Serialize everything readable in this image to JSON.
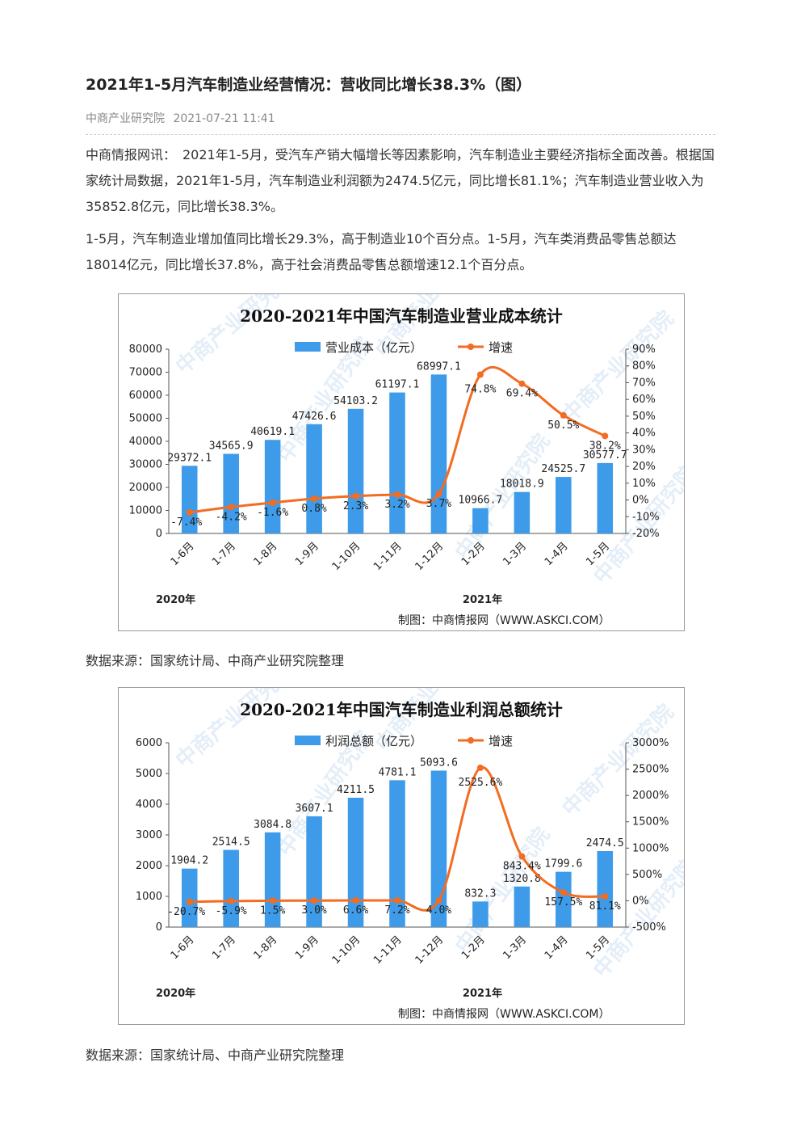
{
  "article": {
    "title": "2021年1-5月汽车制造业经营情况：营收同比增长38.3%（图）",
    "source": "中商产业研究院",
    "datetime": "2021-07-21 11:41",
    "para1": "中商情报网讯：　2021年1-5月，受汽车产销大幅增长等因素影响，汽车制造业主要经济指标全面改善。根据国家统计局数据，2021年1-5月，汽车制造业利润额为2474.5亿元，同比增长81.1%；汽车制造业营业收入为35852.8亿元，同比增长38.3%。",
    "para2": "1-5月，汽车制造业增加值同比增长29.3%，高于制造业10个百分点。1-5月，汽车类消费品零售总额达18014亿元，同比增长37.8%，高于社会消费品零售总额增速12.1个百分点。",
    "caption1": "数据来源：国家统计局、中商产业研究院整理",
    "caption2": "数据来源：国家统计局、中商产业研究院整理"
  },
  "colors": {
    "bar": "#3d9be9",
    "line": "#f26c21"
  },
  "chart_data": [
    {
      "type": "bar",
      "title": "2020-2021年中国汽车制造业营业成本统计",
      "categories": [
        "1-6月",
        "1-7月",
        "1-8月",
        "1-9月",
        "1-10月",
        "1-11月",
        "1-12月",
        "1-2月",
        "1-3月",
        "1-4月",
        "1-5月"
      ],
      "year_labels": [
        "2020年",
        "2021年"
      ],
      "series": [
        {
          "name": "营业成本（亿元）",
          "type": "bar",
          "axis": "left",
          "values": [
            29372.1,
            34565.9,
            40619.1,
            47426.6,
            54103.2,
            61197.1,
            68997.1,
            10966.7,
            18018.9,
            24525.7,
            30577.7
          ],
          "labels": [
            "29372.1",
            "34565.9",
            "40619.1",
            "47426.6",
            "54103.2",
            "61197.1",
            "68997.1",
            "10966.7",
            "18018.9",
            "24525.7",
            "30577.7"
          ]
        },
        {
          "name": "增速",
          "type": "line",
          "axis": "right",
          "values": [
            -7.4,
            -4.2,
            -1.6,
            0.8,
            2.3,
            3.2,
            3.7,
            74.8,
            69.4,
            50.5,
            38.2
          ],
          "labels": [
            "-7.4%",
            "-4.2%",
            "-1.6%",
            "0.8%",
            "2.3%",
            "3.2%",
            "3.7%",
            "74.8%",
            "69.4%",
            "50.5%",
            "38.2%"
          ]
        }
      ],
      "ylim_left": [
        0,
        80000
      ],
      "yticks_left": [
        "80000",
        "70000",
        "60000",
        "50000",
        "40000",
        "30000",
        "20000",
        "10000",
        "0"
      ],
      "ylim_right": [
        -20,
        90
      ],
      "yticks_right": [
        "90%",
        "80%",
        "70%",
        "60%",
        "50%",
        "40%",
        "30%",
        "20%",
        "10%",
        "0%",
        "-10%",
        "-20%"
      ],
      "legend": "top-center",
      "credit": "制图：中商情报网（WWW.ASKCI.COM）",
      "watermark": "中商产业研究院"
    },
    {
      "type": "bar",
      "title": "2020-2021年中国汽车制造业利润总额统计",
      "categories": [
        "1-6月",
        "1-7月",
        "1-8月",
        "1-9月",
        "1-10月",
        "1-11月",
        "1-12月",
        "1-2月",
        "1-3月",
        "1-4月",
        "1-5月"
      ],
      "year_labels": [
        "2020年",
        "2021年"
      ],
      "series": [
        {
          "name": "利润总额（亿元）",
          "type": "bar",
          "axis": "left",
          "values": [
            1904.2,
            2514.5,
            3084.8,
            3607.1,
            4211.5,
            4781.1,
            5093.6,
            832.3,
            1320.8,
            1799.6,
            2474.5
          ],
          "labels": [
            "1904.2",
            "2514.5",
            "3084.8",
            "3607.1",
            "4211.5",
            "4781.1",
            "5093.6",
            "832.3",
            "1320.8",
            "1799.6",
            "2474.5"
          ]
        },
        {
          "name": "增速",
          "type": "line",
          "axis": "right",
          "values": [
            -20.7,
            -5.9,
            1.5,
            3.0,
            6.6,
            7.2,
            4.0,
            2525.6,
            843.4,
            157.5,
            81.1
          ],
          "labels": [
            "-20.7%",
            "-5.9%",
            "1.5%",
            "3.0%",
            "6.6%",
            "7.2%",
            "4.0%",
            "2525.6%",
            "843.4%",
            "157.5%",
            "81.1%"
          ]
        }
      ],
      "ylim_left": [
        0,
        6000
      ],
      "yticks_left": [
        "6000",
        "5000",
        "4000",
        "3000",
        "2000",
        "1000",
        "0"
      ],
      "ylim_right": [
        -500,
        3000
      ],
      "yticks_right": [
        "3000%",
        "2500%",
        "2000%",
        "1500%",
        "1000%",
        "500%",
        "0%",
        "-500%"
      ],
      "legend": "top-center",
      "credit": "制图：中商情报网（WWW.ASKCI.COM）",
      "watermark": "中商产业研究院"
    }
  ]
}
